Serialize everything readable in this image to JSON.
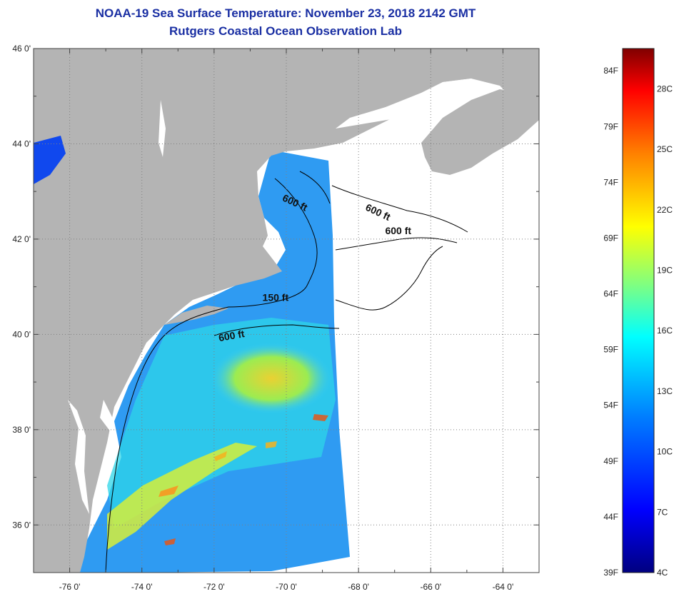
{
  "title": {
    "line1": "NOAA-19 Sea Surface Temperature:  November 23, 2018 2142 GMT",
    "line2": "Rutgers Coastal Ocean Observation Lab"
  },
  "map": {
    "lon_range": [
      -77,
      -63
    ],
    "lat_range": [
      35,
      46
    ],
    "longitude_labels": [
      {
        "lon": -76,
        "text": "-76 0'"
      },
      {
        "lon": -74,
        "text": "-74 0'"
      },
      {
        "lon": -72,
        "text": "-72 0'"
      },
      {
        "lon": -70,
        "text": "-70 0'"
      },
      {
        "lon": -68,
        "text": "-68 0'"
      },
      {
        "lon": -66,
        "text": "-66 0'"
      },
      {
        "lon": -64,
        "text": "-64 0'"
      }
    ],
    "latitude_labels": [
      {
        "lat": 46,
        "text": "46 0'"
      },
      {
        "lat": 44,
        "text": "44 0'"
      },
      {
        "lat": 42,
        "text": "42 0'"
      },
      {
        "lat": 40,
        "text": "40 0'"
      },
      {
        "lat": 38,
        "text": "38 0'"
      },
      {
        "lat": 36,
        "text": "36 0'"
      }
    ],
    "contour_labels": [
      {
        "text": "600 ft",
        "lon": -69.8,
        "lat": 42.7
      },
      {
        "text": "600 ft",
        "lon": -67.5,
        "lat": 42.5
      },
      {
        "text": "600 ft",
        "lon": -66.9,
        "lat": 42.1
      },
      {
        "text": "150 ft",
        "lon": -70.3,
        "lat": 40.7
      },
      {
        "text": "600 ft",
        "lon": -71.5,
        "lat": 39.9
      }
    ],
    "colors": {
      "land": "#b4b4b4",
      "no_data": "#ffffff",
      "contour": "#000000",
      "grid": "#808080"
    }
  },
  "colorbar": {
    "range_f": [
      39,
      86
    ],
    "range_c": [
      4,
      30
    ],
    "fahrenheit_labels": [
      "84F",
      "79F",
      "74F",
      "69F",
      "64F",
      "59F",
      "54F",
      "49F",
      "44F",
      "39F"
    ],
    "celsius_labels": [
      "28C",
      "25C",
      "22C",
      "19C",
      "16C",
      "13C",
      "10C",
      "7C",
      "4C"
    ],
    "gradient": [
      "#000080",
      "#0000ff",
      "#0080ff",
      "#00ffff",
      "#80ff80",
      "#ffff00",
      "#ff8000",
      "#ff0000",
      "#800000"
    ]
  }
}
